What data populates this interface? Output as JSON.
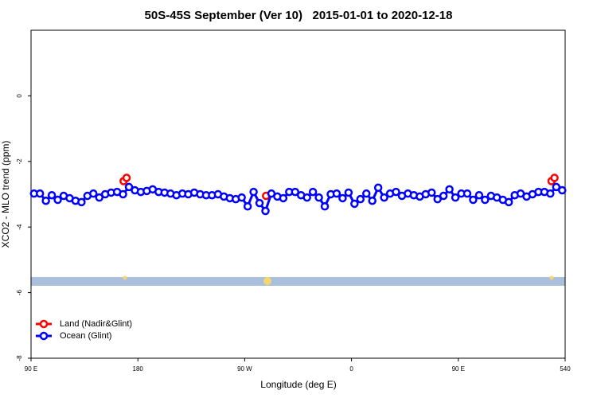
{
  "chart_data": {
    "type": "line",
    "title": "50S-45S September (Ver 10)   2015-01-01 to 2020-12-18",
    "x_label": "Longitude (deg E)",
    "y_label": "XCO2 - MLO trend (ppm)",
    "xlim": [
      90,
      540
    ],
    "ylim": [
      -8,
      2
    ],
    "xticks": [
      {
        "value": 90,
        "label": "90 E"
      },
      180,
      {
        "value": 270,
        "label": "90 W"
      },
      {
        "value": 360,
        "label": "0"
      },
      {
        "value": 450,
        "label": "90 E"
      },
      540
    ],
    "yticks": [
      0,
      -2,
      -4,
      -6,
      -8
    ],
    "grid": false,
    "legend": "bottomleft",
    "series": [
      {
        "name": "Land (Nadir&Glint)",
        "color": "#ff0000",
        "x": [
          168,
          170.5,
          288,
          528.5,
          531
        ],
        "values": [
          -2.6,
          -2.5,
          -3.05,
          -2.6,
          -2.5
        ]
      },
      {
        "name": "Ocean (Glint)",
        "color": "#0000ff",
        "x": [
          92.5,
          97.5,
          102.5,
          107.5,
          112.5,
          117.5,
          122.5,
          127.5,
          132.5,
          137.5,
          142.5,
          147.5,
          152.5,
          157.5,
          162.5,
          167.5,
          172.5,
          177.5,
          182.5,
          187.5,
          192.5,
          197.5,
          202.5,
          207.5,
          212.5,
          217.5,
          222.5,
          227.5,
          232.5,
          237.5,
          242.5,
          247.5,
          252.5,
          257.5,
          262.5,
          267.5,
          272.5,
          277.5,
          282.5,
          287.5,
          292.5,
          297.5,
          302.5,
          307.5,
          312.5,
          317.5,
          322.5,
          327.5,
          332.5,
          337.5,
          342.5,
          347.5,
          352.5,
          357.5,
          362.5,
          367.5,
          372.5,
          377.5,
          382.5,
          387.5,
          392.5,
          397.5,
          402.5,
          407.5,
          412.5,
          417.5,
          422.5,
          427.5,
          432.5,
          437.5,
          442.5,
          447.5,
          452.5,
          457.5,
          462.5,
          467.5,
          472.5,
          477.5,
          482.5,
          487.5,
          492.5,
          497.5,
          502.5,
          507.5,
          512.5,
          517.5,
          522.5,
          527.5,
          532.5,
          537.5
        ],
        "values": [
          -2.98,
          -2.98,
          -3.2,
          -3.03,
          -3.17,
          -3.05,
          -3.12,
          -3.2,
          -3.24,
          -3.05,
          -2.98,
          -3.1,
          -3.0,
          -2.95,
          -2.93,
          -3.0,
          -2.78,
          -2.88,
          -2.93,
          -2.9,
          -2.85,
          -2.93,
          -2.95,
          -2.98,
          -3.03,
          -2.98,
          -3.0,
          -2.95,
          -3.0,
          -3.03,
          -3.03,
          -3.0,
          -3.07,
          -3.12,
          -3.15,
          -3.1,
          -3.37,
          -2.93,
          -3.27,
          -3.51,
          -2.98,
          -3.07,
          -3.12,
          -2.93,
          -2.93,
          -3.03,
          -3.1,
          -2.93,
          -3.1,
          -3.37,
          -3.0,
          -2.98,
          -3.12,
          -2.95,
          -3.29,
          -3.15,
          -2.98,
          -3.2,
          -2.8,
          -3.1,
          -2.98,
          -2.93,
          -3.05,
          -2.98,
          -3.03,
          -3.07,
          -3.0,
          -2.95,
          -3.15,
          -3.05,
          -2.85,
          -3.1,
          -2.98,
          -2.98,
          -3.17,
          -3.03,
          -3.17,
          -3.05,
          -3.1,
          -3.17,
          -3.24,
          -3.03,
          -2.98,
          -3.07,
          -3.0,
          -2.93,
          -2.93,
          -2.98,
          -2.78,
          -2.88
        ]
      }
    ]
  }
}
